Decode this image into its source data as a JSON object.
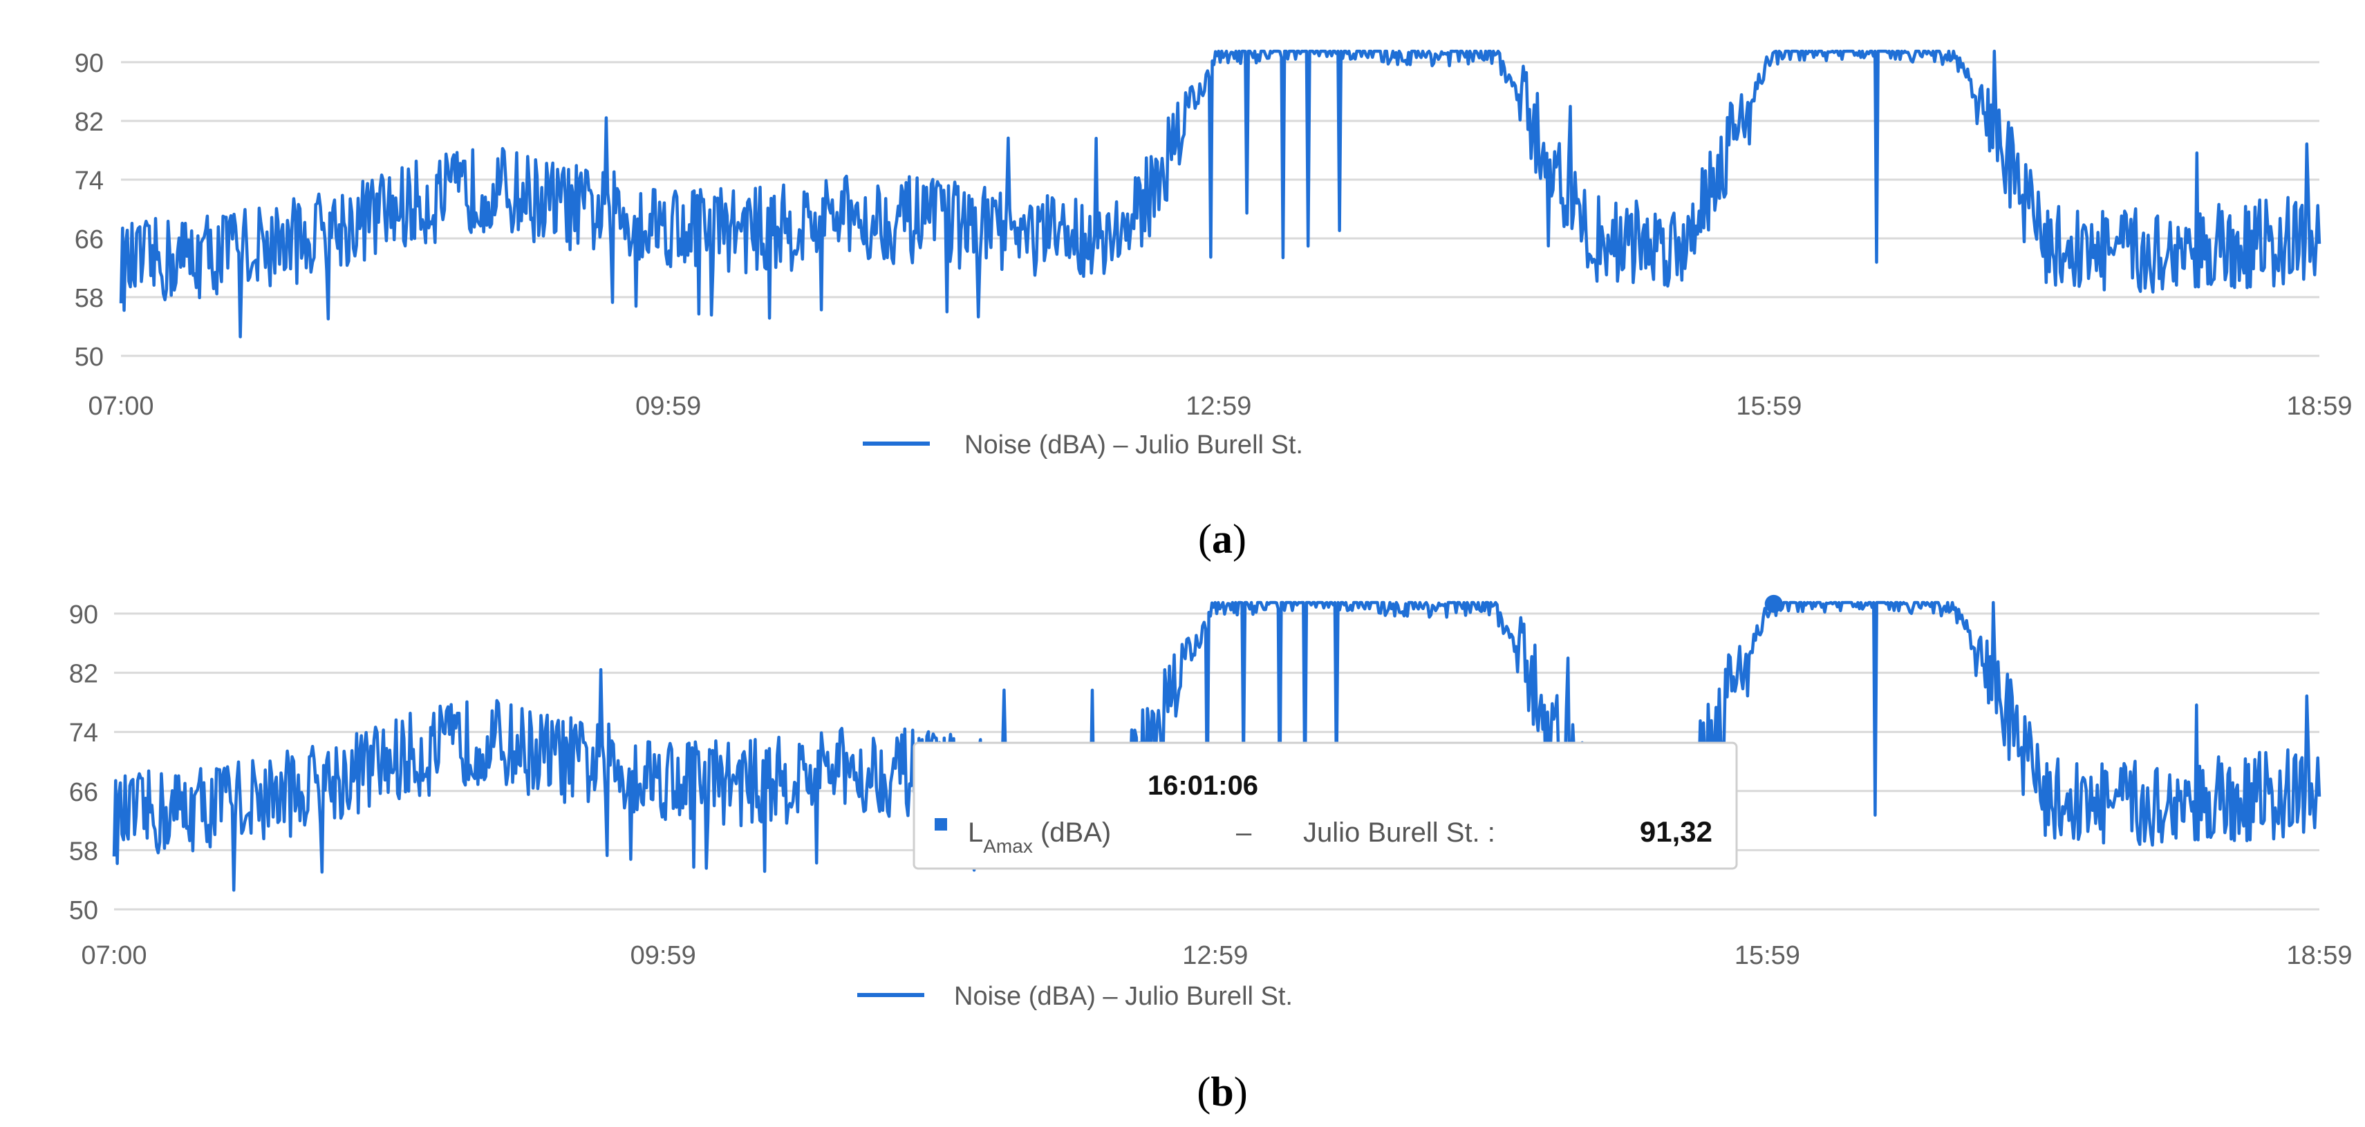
{
  "figure": {
    "labels": {
      "a": {
        "open": "(",
        "letter": "a",
        "close": ")"
      },
      "b": {
        "open": "(",
        "letter": "b",
        "close": ")"
      }
    }
  },
  "tooltip": {
    "time": "16:01:06",
    "series_prefix": "L",
    "series_sub": "Amax",
    "series_suffix": " (dBA)",
    "dash": "–",
    "location": "Julio Burell St. :",
    "value": "91,32"
  },
  "colors": {
    "series": "#1f6fd6",
    "grid": "#d9d9d9",
    "text": "#5f5f5f"
  },
  "chart_data": [
    {
      "panel": "a",
      "type": "line",
      "title": "",
      "xlabel": "",
      "ylabel": "",
      "x_ticks": [
        "07:00",
        "09:59",
        "12:59",
        "15:59",
        "18:59"
      ],
      "x_range": [
        "07:00",
        "18:59"
      ],
      "y_ticks": [
        50,
        58,
        66,
        74,
        82,
        90
      ],
      "ylim": [
        50,
        90
      ],
      "grid": true,
      "legend": {
        "position": "bottom",
        "entries": [
          "Noise (dBA) – Julio Burell St."
        ]
      },
      "series": [
        {
          "name": "Noise (dBA) – Julio Burell St.",
          "times": [
            "07:00",
            "07:30",
            "08:00",
            "08:30",
            "09:00",
            "09:30",
            "10:00",
            "10:30",
            "11:00",
            "11:30",
            "12:00",
            "12:30",
            "12:59",
            "13:30",
            "14:00",
            "14:30",
            "15:00",
            "15:30",
            "16:00",
            "16:30",
            "17:00",
            "17:30",
            "18:00",
            "18:30",
            "18:59"
          ],
          "values": [
            62,
            64,
            66,
            70,
            73,
            70,
            68,
            67,
            69,
            68,
            66,
            67,
            91,
            92,
            91,
            91,
            66,
            65,
            91,
            92,
            91,
            65,
            64,
            65,
            66
          ]
        }
      ]
    },
    {
      "panel": "b",
      "type": "line",
      "title": "",
      "xlabel": "",
      "ylabel": "",
      "x_ticks": [
        "07:00",
        "09:59",
        "12:59",
        "15:59",
        "18:59"
      ],
      "x_range": [
        "07:00",
        "18:59"
      ],
      "y_ticks": [
        50,
        58,
        66,
        74,
        82,
        90
      ],
      "ylim": [
        50,
        90
      ],
      "grid": true,
      "legend": {
        "position": "bottom",
        "entries": [
          "Noise (dBA) – Julio Burell St."
        ]
      },
      "series": [
        {
          "name": "Noise (dBA) – Julio Burell St.",
          "times": [
            "07:00",
            "07:30",
            "08:00",
            "08:30",
            "09:00",
            "09:30",
            "10:00",
            "10:30",
            "11:00",
            "11:30",
            "12:00",
            "12:30",
            "12:59",
            "13:30",
            "14:00",
            "14:30",
            "15:00",
            "15:30",
            "16:00",
            "16:30",
            "17:00",
            "17:30",
            "18:00",
            "18:30",
            "18:59"
          ],
          "values": [
            62,
            64,
            66,
            70,
            73,
            70,
            68,
            67,
            69,
            68,
            66,
            67,
            91,
            92,
            91,
            91,
            66,
            65,
            91,
            92,
            91,
            65,
            64,
            65,
            66
          ]
        }
      ],
      "highlight": {
        "time": "16:01:06",
        "value": 91.32
      }
    }
  ]
}
